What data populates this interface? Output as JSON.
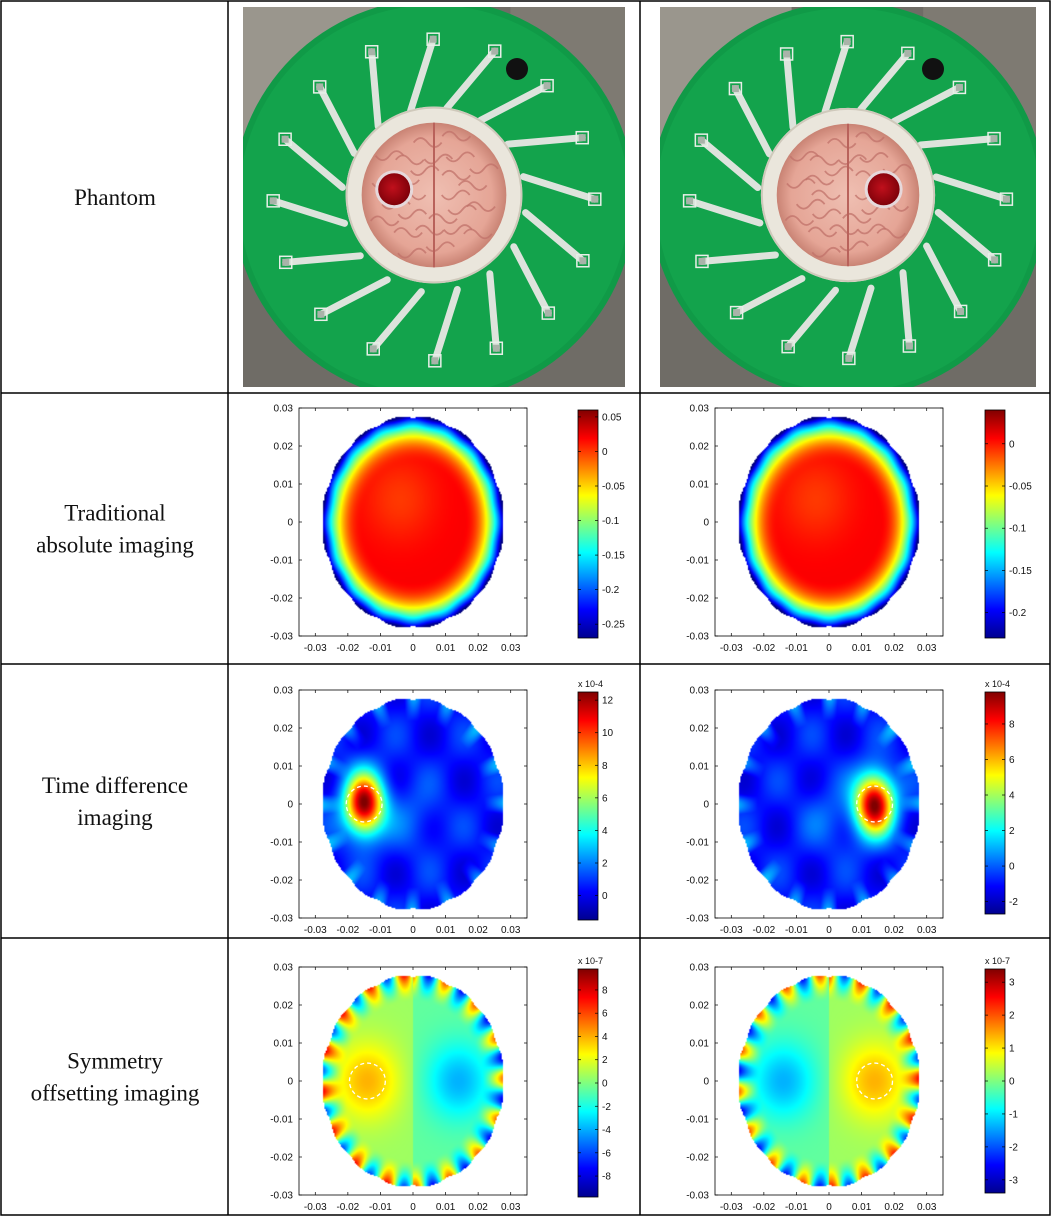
{
  "rows": [
    {
      "label_lines": [
        "Phantom"
      ]
    },
    {
      "label_lines": [
        "Traditional",
        "absolute imaging"
      ]
    },
    {
      "label_lines": [
        "Time difference",
        "imaging"
      ]
    },
    {
      "label_lines": [
        "Symmetry",
        "offsetting imaging"
      ]
    }
  ],
  "chart_data": [
    {
      "type": "heatmap",
      "row": 1,
      "col": 0,
      "pattern": "absolute",
      "x_ticks": [
        "-0.03",
        "-0.02",
        "-0.01",
        "0",
        "0.01",
        "0.02",
        "0.03"
      ],
      "y_ticks": [
        "0.03",
        "0.02",
        "0.01",
        "0",
        "-0.01",
        "-0.02",
        "-0.03"
      ],
      "xlim": [
        -0.035,
        0.035
      ],
      "ylim": [
        -0.03,
        0.03
      ],
      "colorbar": {
        "ticks": [
          "0.05",
          "0",
          "-0.05",
          "-0.1",
          "-0.15",
          "-0.2",
          "-0.25"
        ],
        "min": -0.27,
        "max": 0.06,
        "exponent": ""
      },
      "target": null
    },
    {
      "type": "heatmap",
      "row": 1,
      "col": 1,
      "pattern": "absolute",
      "x_ticks": [
        "-0.03",
        "-0.02",
        "-0.01",
        "0",
        "0.01",
        "0.02",
        "0.03"
      ],
      "y_ticks": [
        "0.03",
        "0.02",
        "0.01",
        "0",
        "-0.01",
        "-0.02",
        "-0.03"
      ],
      "xlim": [
        -0.035,
        0.035
      ],
      "ylim": [
        -0.03,
        0.03
      ],
      "colorbar": {
        "ticks": [
          "0",
          "-0.05",
          "-0.1",
          "-0.15",
          "-0.2"
        ],
        "min": -0.23,
        "max": 0.04,
        "exponent": ""
      },
      "target": null
    },
    {
      "type": "heatmap",
      "row": 2,
      "col": 0,
      "pattern": "difference",
      "x_ticks": [
        "-0.03",
        "-0.02",
        "-0.01",
        "0",
        "0.01",
        "0.02",
        "0.03"
      ],
      "y_ticks": [
        "0.03",
        "0.02",
        "0.01",
        "0",
        "-0.01",
        "-0.02",
        "-0.03"
      ],
      "xlim": [
        -0.035,
        0.035
      ],
      "ylim": [
        -0.03,
        0.03
      ],
      "colorbar": {
        "ticks": [
          "12",
          "10",
          "8",
          "6",
          "4",
          "2",
          "0"
        ],
        "min": -1.5,
        "max": 12.5,
        "exponent": "x 10-4"
      },
      "target": {
        "x": -0.015,
        "y": 0.0,
        "r": 0.0055
      }
    },
    {
      "type": "heatmap",
      "row": 2,
      "col": 1,
      "pattern": "difference",
      "x_ticks": [
        "-0.03",
        "-0.02",
        "-0.01",
        "0",
        "0.01",
        "0.02",
        "0.03"
      ],
      "y_ticks": [
        "0.03",
        "0.02",
        "0.01",
        "0",
        "-0.01",
        "-0.02",
        "-0.03"
      ],
      "xlim": [
        -0.035,
        0.035
      ],
      "ylim": [
        -0.03,
        0.03
      ],
      "colorbar": {
        "ticks": [
          "8",
          "6",
          "4",
          "2",
          "0",
          "-2"
        ],
        "min": -2.7,
        "max": 9.8,
        "exponent": "x 10-4"
      },
      "target": {
        "x": 0.014,
        "y": 0.0,
        "r": 0.0055
      }
    },
    {
      "type": "heatmap",
      "row": 3,
      "col": 0,
      "pattern": "symmetry",
      "x_ticks": [
        "-0.03",
        "-0.02",
        "-0.01",
        "0",
        "0.01",
        "0.02",
        "0.03"
      ],
      "y_ticks": [
        "0.03",
        "0.02",
        "0.01",
        "0",
        "-0.01",
        "-0.02",
        "-0.03"
      ],
      "xlim": [
        -0.035,
        0.035
      ],
      "ylim": [
        -0.03,
        0.03
      ],
      "colorbar": {
        "ticks": [
          "8",
          "6",
          "4",
          "2",
          "0",
          "-2",
          "-4",
          "-6",
          "-8"
        ],
        "min": -9.8,
        "max": 9.8,
        "exponent": "x 10-7"
      },
      "target": {
        "x": -0.014,
        "y": 0.0,
        "r": 0.0055
      }
    },
    {
      "type": "heatmap",
      "row": 3,
      "col": 1,
      "pattern": "symmetry",
      "x_ticks": [
        "-0.03",
        "-0.02",
        "-0.01",
        "0",
        "0.01",
        "0.02",
        "0.03"
      ],
      "y_ticks": [
        "0.03",
        "0.02",
        "0.01",
        "0",
        "-0.01",
        "-0.02",
        "-0.03"
      ],
      "xlim": [
        -0.035,
        0.035
      ],
      "ylim": [
        -0.03,
        0.03
      ],
      "colorbar": {
        "ticks": [
          "3",
          "2",
          "1",
          "0",
          "-1",
          "-2",
          "-3"
        ],
        "min": -3.4,
        "max": 3.4,
        "exponent": "x 10-7"
      },
      "target": {
        "x": 0.014,
        "y": 0.0,
        "r": 0.0055
      }
    }
  ],
  "photos": [
    {
      "col": 0,
      "target_side": "left"
    },
    {
      "col": 1,
      "target_side": "right"
    }
  ]
}
